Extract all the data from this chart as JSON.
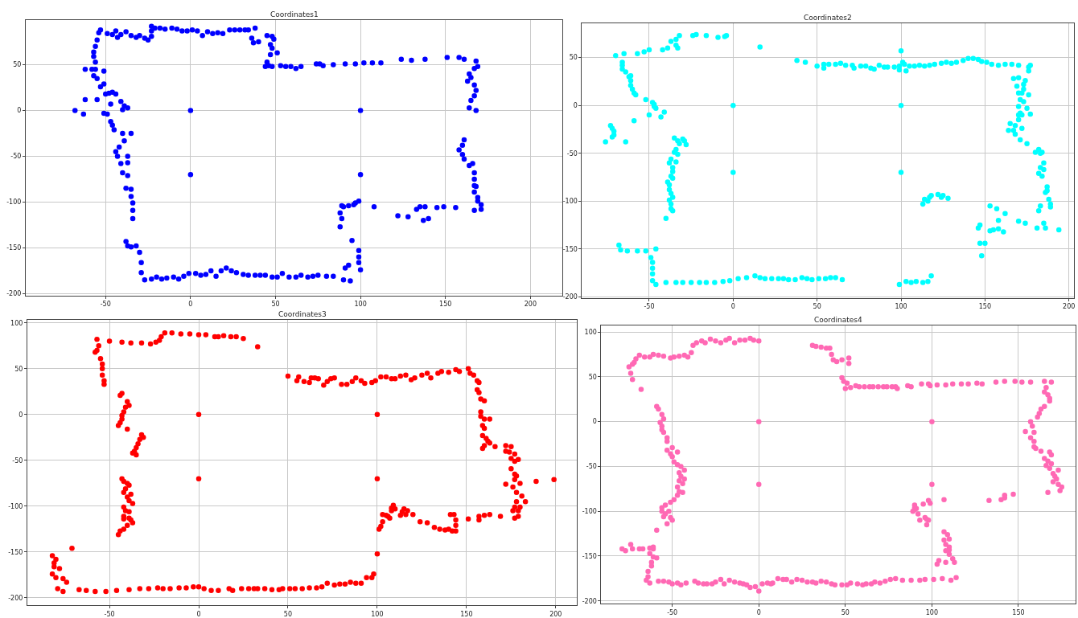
{
  "chart_data": [
    {
      "type": "scatter",
      "title": "Coordinates1",
      "color": "#0000ff",
      "marker": "circle",
      "grid": true,
      "xlim": [
        -97,
        219
      ],
      "ylim": [
        -202,
        99
      ],
      "xticks": [
        -50,
        0,
        50,
        100,
        150,
        200
      ],
      "yticks": [
        -200,
        -150,
        -100,
        -50,
        0,
        50
      ],
      "x": [
        -53,
        -54,
        -55,
        -56,
        -57,
        -57,
        -56,
        -58,
        -56,
        -57,
        -55,
        -53,
        -51,
        -50,
        -48,
        -46,
        -44,
        -47,
        -41,
        -39,
        -37,
        -40,
        -51,
        -49,
        -62,
        -62,
        -55,
        -68,
        -63,
        -51,
        -47,
        -46,
        -45,
        -40,
        -35,
        -39,
        -42,
        -44,
        -43,
        -37,
        -41,
        -37,
        -40,
        -37,
        -38,
        -35,
        -35,
        -34,
        -34,
        -34,
        -38,
        -37,
        -35,
        -32,
        -30,
        -29,
        -29,
        -27,
        -49,
        -46,
        -44,
        -43,
        -41,
        -38,
        -35,
        -32,
        -30,
        -27,
        -25,
        -23,
        -23,
        -23,
        -21,
        -18,
        -15,
        -11,
        -8,
        -5,
        -2,
        1,
        4,
        7,
        10,
        13,
        16,
        19,
        23,
        26,
        29,
        32,
        34,
        36,
        37,
        38,
        40,
        45,
        48,
        49,
        47,
        48,
        51,
        47,
        45,
        44,
        46,
        48,
        53,
        56,
        59,
        62,
        65,
        74,
        76,
        78,
        84,
        91,
        97,
        102,
        107,
        112,
        124,
        130,
        138,
        151,
        158,
        161,
        168,
        169,
        167,
        164,
        165,
        163,
        167,
        168,
        167,
        165,
        164,
        168,
        161,
        160,
        158,
        160,
        161,
        164,
        166,
        167,
        167,
        167,
        168,
        167,
        169,
        169,
        171,
        171,
        167,
        89,
        88,
        89,
        88,
        90,
        93,
        96,
        97,
        99,
        108,
        122,
        128,
        133,
        135,
        138,
        137,
        140,
        145,
        149,
        156,
        95,
        99,
        99,
        99,
        100,
        93,
        91,
        90,
        94,
        -23,
        -20,
        -17,
        -14,
        -10,
        -7,
        -4,
        -1,
        3,
        6,
        9,
        12,
        15,
        18,
        21,
        24,
        27,
        31,
        34,
        38,
        41,
        44,
        48,
        51,
        54,
        58,
        62,
        65,
        69,
        72,
        75,
        80,
        84,
        0,
        100,
        0,
        100
      ],
      "values": [
        88,
        85,
        77,
        70,
        64,
        59,
        53,
        45,
        45,
        38,
        35,
        26,
        29,
        18,
        19,
        20,
        18,
        7,
        10,
        5,
        3,
        1,
        -3,
        -4,
        45,
        12,
        12,
        0,
        -4,
        43,
        -12,
        -16,
        -21,
        -25,
        -25,
        -33,
        -40,
        -45,
        -50,
        -50,
        -58,
        -57,
        -68,
        -71,
        -85,
        -86,
        -94,
        -101,
        -109,
        -118,
        -143,
        -148,
        -149,
        -148,
        -155,
        -166,
        -177,
        -185,
        84,
        83,
        87,
        80,
        83,
        86,
        82,
        80,
        82,
        79,
        77,
        81,
        87,
        92,
        90,
        90,
        89,
        90,
        89,
        87,
        87,
        88,
        87,
        82,
        86,
        84,
        85,
        84,
        88,
        88,
        88,
        88,
        88,
        79,
        74,
        90,
        75,
        82,
        81,
        78,
        72,
        68,
        63,
        61,
        53,
        48,
        49,
        48,
        49,
        48,
        48,
        46,
        48,
        51,
        51,
        49,
        50,
        51,
        51,
        52,
        52,
        52,
        56,
        55,
        56,
        58,
        58,
        56,
        54,
        48,
        46,
        40,
        36,
        32,
        28,
        22,
        16,
        11,
        3,
        0,
        -32,
        -38,
        -43,
        -48,
        -53,
        -60,
        -58,
        -68,
        -75,
        -82,
        -83,
        -89,
        -95,
        -99,
        -103,
        -108,
        -109,
        -104,
        -112,
        -118,
        -127,
        -105,
        -104,
        -103,
        -101,
        -99,
        -105,
        -115,
        -116,
        -108,
        -105,
        -105,
        -120,
        -118,
        -106,
        -105,
        -106,
        -142,
        -153,
        -160,
        -166,
        -174,
        -169,
        -172,
        -185,
        -186,
        -184,
        -182,
        -184,
        -183,
        -182,
        -184,
        -181,
        -178,
        -178,
        -180,
        -179,
        -175,
        -181,
        -175,
        -172,
        -175,
        -177,
        -179,
        -180,
        -180,
        -180,
        -180,
        -182,
        -182,
        -178,
        -182,
        -182,
        -180,
        -182,
        -181,
        -180,
        -181,
        -181,
        0,
        0,
        -70,
        -70
      ]
    },
    {
      "type": "scatter",
      "title": "Coordinates2",
      "color": "#00ffff",
      "marker": "circle",
      "grid": true,
      "xlim": [
        -90,
        203
      ],
      "ylim": [
        -201,
        86
      ],
      "xticks": [
        -50,
        0,
        50,
        100,
        150,
        200
      ],
      "yticks": [
        -200,
        -150,
        -100,
        -50,
        0,
        50
      ],
      "x": [
        -70,
        -65,
        -66,
        -66,
        -66,
        -64,
        -62,
        -61,
        -61,
        -61,
        -60,
        -59,
        -58,
        -57,
        -53,
        -50,
        -52,
        -48,
        -47,
        -46,
        -47,
        -50,
        -43,
        -41,
        -42,
        -39,
        -37,
        -34,
        -34,
        -33,
        -32,
        -24,
        -22,
        -16,
        -9,
        -5,
        -4,
        16,
        -76,
        -73,
        -72,
        -72,
        -71,
        -71,
        -64,
        -59,
        -35,
        -33,
        -32,
        -30,
        -29,
        -28,
        -34,
        -35,
        -33,
        -34,
        -37,
        -38,
        -36,
        -36,
        -37,
        -36,
        -39,
        -38,
        -38,
        -37,
        -36,
        -38,
        -37,
        -37,
        -36,
        -40,
        -68,
        -67,
        -63,
        -57,
        -52,
        -46,
        -49,
        -48,
        -48,
        -48,
        -48,
        -46,
        -40,
        -34,
        -30,
        -25,
        -20,
        -16,
        -11,
        -6,
        -2,
        3,
        8,
        13,
        16,
        19,
        23,
        27,
        30,
        33,
        37,
        41,
        44,
        47,
        51,
        55,
        58,
        61,
        65,
        38,
        43,
        50,
        54,
        54,
        57,
        61,
        64,
        67,
        71,
        72,
        76,
        79,
        82,
        84,
        87,
        90,
        92,
        96,
        99,
        99,
        100,
        101,
        102,
        103,
        105,
        108,
        111,
        114,
        117,
        120,
        124,
        127,
        130,
        133,
        137,
        140,
        143,
        146,
        148,
        151,
        154,
        158,
        162,
        166,
        170,
        177,
        176,
        176,
        174,
        173,
        170,
        167,
        169,
        170,
        172,
        171,
        173,
        170,
        175,
        171,
        170,
        172,
        172,
        170,
        165,
        167,
        168,
        171,
        175,
        176,
        173,
        177,
        168,
        164,
        180,
        182,
        183,
        184,
        185,
        183,
        182,
        184,
        185,
        187,
        187,
        186,
        188,
        189,
        189,
        183,
        182,
        181,
        185,
        186,
        194,
        113,
        114,
        116,
        117,
        118,
        122,
        124,
        125,
        128,
        146,
        147,
        147,
        150,
        148,
        153,
        157,
        158,
        162,
        153,
        155,
        158,
        161,
        170,
        174,
        99,
        103,
        106,
        109,
        113,
        116,
        118,
        0,
        100,
        0,
        100
      ],
      "values": [
        52,
        54,
        45,
        42,
        38,
        35,
        30,
        31,
        26,
        21,
        17,
        13,
        11,
        54,
        56,
        58,
        6,
        3,
        1,
        -3,
        -1,
        -10,
        -12,
        -7,
        58,
        60,
        67,
        69,
        63,
        60,
        73,
        73,
        74,
        73,
        71,
        72,
        73,
        61,
        -38,
        -21,
        -24,
        -33,
        -27,
        -31,
        -38,
        -16,
        -34,
        -37,
        -40,
        -35,
        -37,
        -41,
        -46,
        -49,
        -51,
        -59,
        -56,
        -60,
        -65,
        -69,
        -74,
        -76,
        -80,
        -83,
        -88,
        -92,
        -96,
        -99,
        -103,
        -108,
        -110,
        -118,
        -146,
        -151,
        -152,
        -152,
        -152,
        -150,
        -159,
        -164,
        -170,
        -176,
        -183,
        -187,
        -185,
        -185,
        -185,
        -185,
        -185,
        -185,
        -185,
        -184,
        -183,
        -181,
        -180,
        -178,
        -180,
        -181,
        -181,
        -181,
        -181,
        -182,
        -182,
        -180,
        -181,
        -182,
        -181,
        -181,
        -180,
        -180,
        -182,
        47,
        45,
        41,
        43,
        39,
        43,
        43,
        44,
        42,
        42,
        39,
        41,
        41,
        39,
        38,
        42,
        40,
        40,
        40,
        41,
        37,
        57,
        45,
        43,
        36,
        41,
        41,
        42,
        41,
        42,
        43,
        44,
        45,
        44,
        45,
        47,
        49,
        49,
        48,
        46,
        45,
        43,
        42,
        43,
        43,
        42,
        42,
        40,
        36,
        26,
        22,
        29,
        28,
        20,
        13,
        13,
        6,
        4,
        -1,
        -3,
        -8,
        -10,
        -10,
        -24,
        -15,
        -19,
        -26,
        -30,
        -36,
        -40,
        11,
        17,
        -9,
        -21,
        -26,
        -49,
        -46,
        -50,
        -49,
        -60,
        -65,
        -71,
        -74,
        -67,
        -85,
        -89,
        -91,
        -98,
        -103,
        -106,
        -105,
        -110,
        -128,
        -123,
        -128,
        -130,
        -103,
        -98,
        -100,
        -96,
        -94,
        -93,
        -96,
        -94,
        -97,
        -128,
        -125,
        -144,
        -144,
        -157,
        -105,
        -108,
        -120,
        -113,
        -131,
        -130,
        -129,
        -132,
        -121,
        -123,
        -187,
        -184,
        -185,
        -184,
        -185,
        -184,
        -178,
        0,
        0,
        -70,
        -70
      ]
    },
    {
      "type": "scatter",
      "title": "Coordinates3",
      "color": "#ff0000",
      "marker": "circle",
      "grid": true,
      "xlim": [
        -96,
        212
      ],
      "ylim": [
        -208,
        103
      ],
      "xticks": [
        -50,
        0,
        50,
        100,
        150,
        200
      ],
      "yticks": [
        -200,
        -150,
        -100,
        -50,
        0,
        50,
        100
      ],
      "x": [
        -57,
        -56,
        -58,
        -57,
        -55,
        -54,
        -54,
        -54,
        -53,
        -53,
        -50,
        -43,
        -38,
        -32,
        -27,
        -24,
        -22,
        -21,
        -19,
        -15,
        -10,
        -5,
        0,
        4,
        9,
        11,
        14,
        18,
        21,
        25,
        33,
        -44,
        -43,
        -40,
        -39,
        -41,
        -42,
        -43,
        -43,
        -44,
        -45,
        -40,
        -32,
        -31,
        -33,
        -34,
        -35,
        -36,
        -37,
        -35,
        -43,
        -42,
        -40,
        -39,
        -41,
        -42,
        -38,
        -40,
        -39,
        -37,
        -42,
        -41,
        -39,
        -42,
        -39,
        -42,
        -38,
        -37,
        -40,
        -42,
        -44,
        -45,
        -82,
        -80,
        -81,
        -81,
        -78,
        -82,
        -80,
        -76,
        -74,
        -79,
        -76,
        -71,
        -67,
        -63,
        -58,
        -52,
        -46,
        -39,
        -33,
        -28,
        -23,
        -20,
        -16,
        -11,
        -7,
        -3,
        0,
        3,
        7,
        11,
        17,
        19,
        24,
        28,
        31,
        33,
        37,
        41,
        45,
        47,
        51,
        54,
        58,
        62,
        66,
        69,
        72,
        76,
        79,
        82,
        85,
        88,
        91,
        94,
        97,
        98,
        100,
        101,
        102,
        103,
        103,
        105,
        106,
        107,
        108,
        108,
        109,
        110,
        113,
        114,
        115,
        116,
        117,
        120,
        124,
        128,
        132,
        135,
        138,
        140,
        141,
        143,
        144,
        144,
        144,
        142,
        151,
        157,
        157,
        160,
        163,
        169,
        50,
        55,
        56,
        59,
        62,
        63,
        65,
        67,
        70,
        72,
        74,
        76,
        80,
        83,
        86,
        88,
        91,
        93,
        97,
        99,
        102,
        105,
        108,
        110,
        113,
        116,
        119,
        121,
        125,
        128,
        130,
        134,
        136,
        140,
        144,
        146,
        151,
        152,
        154,
        156,
        157,
        156,
        157,
        158,
        160,
        158,
        158,
        160,
        163,
        159,
        160,
        159,
        161,
        162,
        163,
        159,
        166,
        160,
        172,
        172,
        174,
        175,
        177,
        175,
        177,
        179,
        175,
        177,
        178,
        177,
        172,
        176,
        180,
        178,
        181,
        183,
        178,
        177,
        179,
        176,
        177,
        179,
        180,
        189,
        199,
        0,
        100,
        0,
        100
      ],
      "values": [
        82,
        75,
        68,
        70,
        61,
        55,
        50,
        43,
        37,
        33,
        80,
        79,
        78,
        78,
        77,
        79,
        81,
        85,
        89,
        89,
        88,
        88,
        87,
        87,
        85,
        85,
        86,
        85,
        85,
        83,
        74,
        21,
        23,
        14,
        10,
        8,
        3,
        -1,
        -5,
        -9,
        -12,
        -16,
        -22,
        -25,
        -27,
        -32,
        -36,
        -40,
        -42,
        -44,
        -70,
        -73,
        -75,
        -77,
        -81,
        -85,
        -87,
        -90,
        -94,
        -97,
        -101,
        -105,
        -106,
        -111,
        -113,
        -114,
        -115,
        -118,
        -121,
        -125,
        -127,
        -131,
        -154,
        -158,
        -162,
        -166,
        -168,
        -174,
        -178,
        -179,
        -183,
        -190,
        -193,
        -146,
        -191,
        -192,
        -193,
        -193,
        -192,
        -191,
        -190,
        -190,
        -189,
        -190,
        -190,
        -189,
        -189,
        -188,
        -188,
        -190,
        -192,
        -192,
        -190,
        -192,
        -190,
        -190,
        -190,
        -190,
        -190,
        -191,
        -191,
        -190,
        -190,
        -190,
        -190,
        -189,
        -189,
        -188,
        -184,
        -186,
        -185,
        -185,
        -183,
        -184,
        -184,
        -178,
        -178,
        -174,
        -152,
        -125,
        -122,
        -117,
        -109,
        -110,
        -111,
        -113,
        -105,
        -102,
        -99,
        -103,
        -110,
        -106,
        -103,
        -109,
        -105,
        -109,
        -117,
        -118,
        -123,
        -125,
        -126,
        -125,
        -109,
        -109,
        -115,
        -121,
        -127,
        -127,
        -114,
        -111,
        -115,
        -110,
        -109,
        -111,
        42,
        37,
        41,
        36,
        35,
        40,
        40,
        39,
        32,
        36,
        39,
        40,
        33,
        33,
        36,
        40,
        37,
        34,
        35,
        37,
        41,
        41,
        39,
        39,
        42,
        43,
        38,
        40,
        43,
        45,
        40,
        45,
        47,
        46,
        49,
        47,
        50,
        45,
        43,
        37,
        35,
        27,
        24,
        17,
        15,
        3,
        -2,
        -5,
        -5,
        -12,
        -15,
        -23,
        -26,
        -29,
        -31,
        -37,
        -35,
        -34,
        -34,
        -40,
        -41,
        -35,
        -43,
        -48,
        -51,
        -49,
        -59,
        -65,
        -67,
        -71,
        -76,
        -79,
        -75,
        -85,
        -89,
        -95,
        -95,
        -101,
        -105,
        -105,
        -113,
        -111,
        -101,
        -73,
        -71,
        0,
        0,
        -70,
        -70
      ]
    },
    {
      "type": "scatter",
      "title": "Coordinates4",
      "color": "#ff69b4",
      "marker": "circle",
      "grid": true,
      "xlim": [
        -91,
        183
      ],
      "ylim": [
        -203,
        107
      ],
      "xticks": [
        -50,
        0,
        50,
        100,
        150
      ],
      "yticks": [
        -200,
        -150,
        -100,
        -50,
        0,
        50,
        100
      ],
      "x": [
        -75,
        -74,
        -73,
        -68,
        -73,
        -72,
        -71,
        -69,
        -66,
        -63,
        -61,
        -58,
        -55,
        -51,
        -49,
        -46,
        -43,
        -41,
        -39,
        -38,
        -36,
        -33,
        -31,
        -28,
        -25,
        -22,
        -19,
        -17,
        -14,
        -11,
        -8,
        -5,
        -3,
        0,
        31,
        33,
        36,
        39,
        41,
        42,
        43,
        45,
        48,
        52,
        52,
        48,
        49,
        51,
        50,
        53,
        56,
        58,
        61,
        64,
        66,
        69,
        72,
        74,
        77,
        79,
        80,
        86,
        88,
        94,
        98,
        99,
        103,
        108,
        112,
        117,
        121,
        126,
        129,
        137,
        142,
        148,
        152,
        157,
        165,
        169,
        166,
        165,
        167,
        168,
        168,
        165,
        163,
        162,
        161,
        157,
        158,
        154,
        159,
        157,
        159,
        159,
        160,
        163,
        168,
        169,
        165,
        167,
        169,
        166,
        168,
        173,
        170,
        171,
        172,
        170,
        173,
        175,
        174,
        167,
        133,
        140,
        142,
        142,
        147,
        90,
        90,
        90,
        89,
        91,
        95,
        92,
        93,
        96,
        97,
        98,
        97,
        98,
        99,
        107,
        107,
        107,
        109,
        110,
        108,
        110,
        108,
        110,
        110,
        108,
        112,
        113,
        104,
        103,
        -59,
        -58,
        -56,
        -55,
        -57,
        -56,
        -56,
        -55,
        -53,
        -53,
        -50,
        -53,
        -51,
        -50,
        -47,
        -49,
        -47,
        -45,
        -43,
        -46,
        -45,
        -43,
        -46,
        -44,
        -47,
        -46,
        -44,
        -47,
        -49,
        -51,
        -54,
        -56,
        -56,
        -54,
        -52,
        -55,
        -51,
        -50,
        -53,
        -59,
        -79,
        -77,
        -74,
        -73,
        -69,
        -67,
        -63,
        -61,
        -61,
        -63,
        -61,
        -59,
        -62,
        -62,
        -64,
        -64,
        -65,
        -63,
        -58,
        -55,
        -52,
        -50,
        -47,
        -45,
        -42,
        -37,
        -35,
        -32,
        -30,
        -27,
        -25,
        -22,
        -20,
        -17,
        -14,
        -11,
        -9,
        -7,
        -5,
        -2,
        0,
        2,
        5,
        7,
        8,
        11,
        14,
        16,
        19,
        22,
        25,
        28,
        31,
        33,
        36,
        39,
        42,
        44,
        48,
        51,
        53,
        57,
        60,
        62,
        65,
        67,
        70,
        73,
        76,
        79,
        83,
        88,
        93,
        96,
        101,
        106,
        111,
        114,
        0,
        100,
        0,
        100
      ],
      "values": [
        61,
        54,
        47,
        36,
        64,
        66,
        70,
        74,
        72,
        72,
        75,
        74,
        73,
        71,
        72,
        73,
        74,
        72,
        77,
        85,
        88,
        90,
        88,
        92,
        90,
        88,
        91,
        93,
        88,
        91,
        91,
        93,
        91,
        90,
        85,
        84,
        83,
        82,
        82,
        75,
        69,
        67,
        69,
        71,
        65,
        49,
        45,
        43,
        37,
        38,
        40,
        39,
        39,
        39,
        39,
        39,
        39,
        39,
        39,
        39,
        37,
        40,
        39,
        42,
        42,
        40,
        41,
        41,
        42,
        42,
        42,
        43,
        42,
        44,
        45,
        45,
        44,
        44,
        45,
        44,
        38,
        33,
        30,
        26,
        23,
        17,
        14,
        9,
        5,
        0,
        -5,
        -11,
        -12,
        -18,
        -22,
        -28,
        -30,
        -33,
        -34,
        -37,
        -41,
        -44,
        -47,
        -49,
        -52,
        -54,
        -58,
        -61,
        -64,
        -67,
        -70,
        -73,
        -77,
        -79,
        -88,
        -87,
        -85,
        -82,
        -81,
        -93,
        -96,
        -98,
        -100,
        -97,
        -92,
        -103,
        -110,
        -107,
        -109,
        -110,
        -115,
        -88,
        -91,
        -87,
        -123,
        -132,
        -126,
        -131,
        -137,
        -140,
        -144,
        -143,
        -148,
        -157,
        -153,
        -157,
        -155,
        -159,
        17,
        14,
        8,
        3,
        -1,
        -5,
        -9,
        -12,
        -18,
        -22,
        -29,
        -32,
        -36,
        -39,
        -34,
        -45,
        -48,
        -50,
        -54,
        -57,
        -61,
        -64,
        -66,
        -69,
        -73,
        -78,
        -79,
        -82,
        -87,
        -90,
        -93,
        -96,
        -100,
        -103,
        -100,
        -106,
        -107,
        -110,
        -114,
        -121,
        -142,
        -144,
        -137,
        -142,
        -142,
        -142,
        -141,
        -140,
        -142,
        -147,
        -151,
        -152,
        -157,
        -161,
        -167,
        -173,
        -177,
        -180,
        -178,
        -178,
        -179,
        -181,
        -180,
        -182,
        -180,
        -178,
        -180,
        -181,
        -181,
        -181,
        -179,
        -176,
        -181,
        -177,
        -179,
        -180,
        -181,
        -182,
        -185,
        -184,
        -189,
        -181,
        -180,
        -181,
        -180,
        -175,
        -176,
        -176,
        -179,
        -176,
        -177,
        -179,
        -179,
        -180,
        -178,
        -179,
        -181,
        -182,
        -182,
        -182,
        -180,
        -181,
        -182,
        -181,
        -181,
        -179,
        -180,
        -178,
        -176,
        -175,
        -177,
        -177,
        -177,
        -176,
        -176,
        -175,
        -177,
        -174,
        0,
        0,
        -70,
        -70
      ]
    }
  ]
}
